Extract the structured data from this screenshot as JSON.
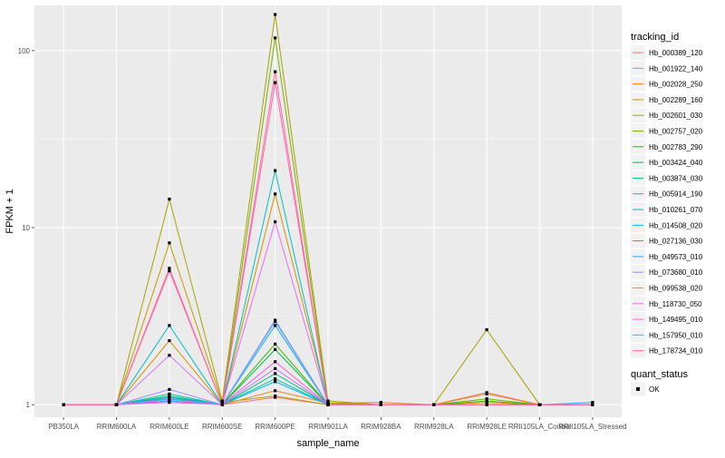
{
  "chart_data": {
    "type": "line",
    "xlabel": "sample_name",
    "ylabel": "FPKM + 1",
    "y_scale": "log10",
    "ylim": [
      0.85,
      180
    ],
    "y_ticks": [
      {
        "value": 1,
        "label": "1"
      },
      {
        "value": 10,
        "label": "10"
      },
      {
        "value": 100,
        "label": "100"
      }
    ],
    "categories": [
      "PB350LA",
      "RRIM600LA",
      "RRIM600LE",
      "RRIM600SE",
      "RRIM600PE",
      "RRIM901LA",
      "RRIM928BA",
      "RRIM928LA",
      "RRIM928LE",
      "RRII105LA_Control",
      "RRII105LA_Stressed"
    ],
    "legend": {
      "position": "right",
      "title": "tracking_id",
      "shape_title": "quant_status",
      "shape_label": "OK"
    },
    "series": [
      {
        "name": "Hb_000389_120",
        "color": "#F8766D",
        "values": [
          1,
          1,
          1.05,
          1,
          1.1,
          1,
          1,
          1,
          1.15,
          1,
          1
        ]
      },
      {
        "name": "Hb_001922_140",
        "color": "#EA8331",
        "values": [
          1,
          1,
          1.1,
          1,
          1.2,
          1.02,
          1.03,
          1,
          1.17,
          1,
          1
        ]
      },
      {
        "name": "Hb_002028_250",
        "color": "#D89000",
        "values": [
          1,
          1,
          2.3,
          1,
          15.5,
          1.02,
          1,
          1,
          1.03,
          1,
          1
        ]
      },
      {
        "name": "Hb_002289_160",
        "color": "#C09B00",
        "values": [
          1,
          1,
          8.2,
          1.03,
          1.12,
          1,
          1,
          1,
          1,
          1,
          1
        ]
      },
      {
        "name": "Hb_002601_030",
        "color": "#A3A500",
        "values": [
          1,
          1,
          14.5,
          1.05,
          160,
          1.05,
          1,
          1,
          2.65,
          1,
          1
        ]
      },
      {
        "name": "Hb_002757_020",
        "color": "#7CAE00",
        "values": [
          1,
          1,
          1.1,
          1,
          118,
          1.02,
          1,
          1,
          1.08,
          1,
          1
        ]
      },
      {
        "name": "Hb_002783_290",
        "color": "#39B600",
        "values": [
          1,
          1,
          1.08,
          1,
          2.2,
          1,
          1,
          1,
          1.05,
          1,
          1
        ]
      },
      {
        "name": "Hb_003424_040",
        "color": "#00BB4E",
        "values": [
          1,
          1,
          1.05,
          1,
          2.05,
          1,
          1,
          1,
          1,
          1,
          1
        ]
      },
      {
        "name": "Hb_003874_030",
        "color": "#00BF7D",
        "values": [
          1,
          1,
          1.12,
          1,
          1.5,
          1,
          1,
          1,
          1,
          1,
          1
        ]
      },
      {
        "name": "Hb_005914_190",
        "color": "#00C1A3",
        "values": [
          1,
          1,
          1.15,
          1,
          1.4,
          1,
          1,
          1,
          1,
          1,
          1
        ]
      },
      {
        "name": "Hb_010261_070",
        "color": "#00BFC4",
        "values": [
          1,
          1,
          2.8,
          1,
          21,
          1,
          1,
          1,
          1,
          1,
          1
        ]
      },
      {
        "name": "Hb_014508_020",
        "color": "#00BAE0",
        "values": [
          1,
          1,
          1.1,
          1,
          2.8,
          1,
          1,
          1,
          1,
          1,
          1
        ]
      },
      {
        "name": "Hb_027136_030",
        "color": "#00B0F6",
        "values": [
          1,
          1,
          1.08,
          1,
          1.35,
          1,
          1,
          1,
          1,
          1,
          1
        ]
      },
      {
        "name": "Hb_049573_010",
        "color": "#35A2FF",
        "values": [
          1,
          1,
          1.05,
          1,
          3.0,
          1,
          1,
          1,
          1,
          1,
          1.03
        ]
      },
      {
        "name": "Hb_073680_010",
        "color": "#9590FF",
        "values": [
          1,
          1,
          1.22,
          1,
          2.95,
          1,
          1,
          1,
          1,
          1,
          1
        ]
      },
      {
        "name": "Hb_099538_020",
        "color": "#C77CFF",
        "values": [
          1,
          1,
          1.9,
          1,
          1.6,
          1,
          1,
          1,
          1,
          1,
          1
        ]
      },
      {
        "name": "Hb_118730_050",
        "color": "#E76BF3",
        "values": [
          1,
          1,
          1.07,
          1,
          10.8,
          1,
          1,
          1,
          1,
          1,
          1
        ]
      },
      {
        "name": "Hb_149495_010",
        "color": "#FA62DB",
        "values": [
          1,
          1,
          1.03,
          1,
          1.75,
          1,
          1,
          1,
          1,
          1,
          1
        ]
      },
      {
        "name": "Hb_157950_010",
        "color": "#FF62BC",
        "values": [
          1,
          1,
          5.7,
          1,
          66,
          1,
          1,
          1,
          1,
          1,
          1
        ]
      },
      {
        "name": "Hb_178734_010",
        "color": "#FF6C91",
        "values": [
          1,
          1,
          5.9,
          1,
          76,
          1,
          1,
          1,
          1,
          1,
          1
        ]
      }
    ]
  }
}
